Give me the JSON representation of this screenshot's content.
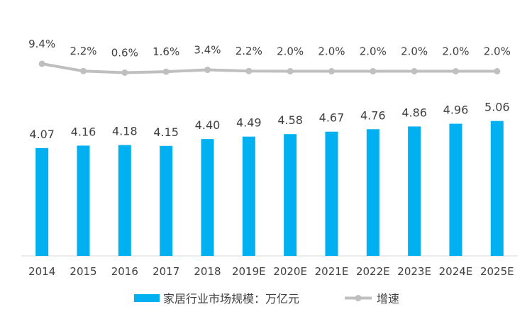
{
  "chart_data": {
    "type": "bar",
    "categories": [
      "2014",
      "2015",
      "2016",
      "2017",
      "2018",
      "2019E",
      "2020E",
      "2021E",
      "2022E",
      "2023E",
      "2024E",
      "2025E"
    ],
    "series": [
      {
        "name": "家居行业市场规模：万亿元",
        "type": "bar",
        "values": [
          4.07,
          4.16,
          4.18,
          4.15,
          4.4,
          4.49,
          4.58,
          4.67,
          4.76,
          4.86,
          4.96,
          5.06
        ],
        "labels": [
          "4.07",
          "4.16",
          "4.18",
          "4.15",
          "4.40",
          "4.49",
          "4.58",
          "4.67",
          "4.76",
          "4.86",
          "4.96",
          "5.06"
        ],
        "color": "#00b0f0"
      },
      {
        "name": "增速",
        "type": "line",
        "values": [
          9.4,
          2.2,
          0.6,
          1.6,
          3.4,
          2.2,
          2.0,
          2.0,
          2.0,
          2.0,
          2.0,
          2.0
        ],
        "labels": [
          "9.4%",
          "2.2%",
          "0.6%",
          "1.6%",
          "3.4%",
          "2.2%",
          "2.0%",
          "2.0%",
          "2.0%",
          "2.0%",
          "2.0%",
          "2.0%"
        ],
        "color": "#bfbfbf"
      }
    ],
    "legend_position": "bottom",
    "grid": false
  }
}
